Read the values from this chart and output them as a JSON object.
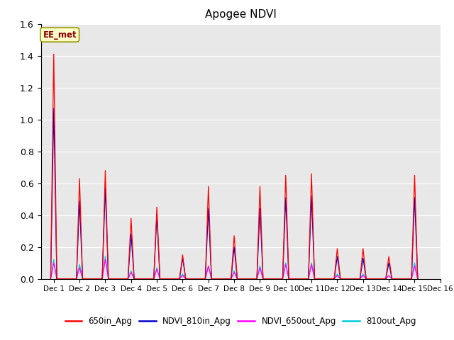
{
  "title": "Apogee NDVI",
  "annotation": "EE_met",
  "xlim": [
    0.5,
    15.5
  ],
  "ylim": [
    0.0,
    1.6
  ],
  "yticks": [
    0.0,
    0.2,
    0.4,
    0.6,
    0.8,
    1.0,
    1.2,
    1.4,
    1.6
  ],
  "xtick_positions": [
    1,
    2,
    3,
    4,
    5,
    6,
    7,
    8,
    9,
    10,
    11,
    12,
    13,
    14,
    15,
    16
  ],
  "xtick_labels": [
    "Dec 1",
    "Dec 2",
    "Dec 3",
    "Dec 4",
    "Dec 5",
    "Dec 6",
    "Dec 7",
    "Dec 8",
    "Dec 9",
    "Dec 10",
    "Dec 11",
    "Dec 12",
    "Dec 13",
    "Dec 14",
    "Dec 15",
    "Dec 16"
  ],
  "legend_entries": [
    "650in_Apg",
    "NDVI_810in_Apg",
    "NDVI_650out_Apg",
    "810out_Apg"
  ],
  "legend_colors": [
    "#ff0000",
    "#0000cc",
    "#ff00ff",
    "#00ccdd"
  ],
  "colors": {
    "650in_Apg": "#ff0000",
    "NDVI_810in_Apg": "#0000cc",
    "NDVI_650out_Apg": "#ff00ff",
    "810out_Apg": "#00ccdd"
  },
  "background_color": "#e8e8e8",
  "series": {
    "650in_Apg": {
      "x": [
        0.88,
        1.0,
        1.12,
        1.88,
        2.0,
        2.12,
        2.88,
        3.0,
        3.12,
        3.88,
        4.0,
        4.12,
        4.88,
        5.0,
        5.12,
        5.88,
        6.0,
        6.12,
        6.88,
        7.0,
        7.12,
        7.88,
        8.0,
        8.12,
        8.88,
        9.0,
        9.12,
        9.88,
        10.0,
        10.12,
        10.88,
        11.0,
        11.12,
        11.88,
        12.0,
        12.12,
        12.88,
        13.0,
        13.12,
        13.88,
        14.0,
        14.12,
        14.88,
        15.0,
        15.12
      ],
      "y": [
        0.0,
        1.41,
        0.0,
        0.0,
        0.63,
        0.0,
        0.0,
        0.68,
        0.0,
        0.0,
        0.38,
        0.0,
        0.0,
        0.45,
        0.0,
        0.0,
        0.15,
        0.0,
        0.0,
        0.58,
        0.0,
        0.0,
        0.27,
        0.0,
        0.0,
        0.58,
        0.0,
        0.0,
        0.65,
        0.0,
        0.0,
        0.66,
        0.0,
        0.0,
        0.19,
        0.0,
        0.0,
        0.19,
        0.0,
        0.0,
        0.14,
        0.0,
        0.0,
        0.65,
        0.0
      ]
    },
    "NDVI_810in_Apg": {
      "x": [
        0.88,
        1.0,
        1.12,
        1.88,
        2.0,
        2.12,
        2.88,
        3.0,
        3.12,
        3.88,
        4.0,
        4.12,
        4.88,
        5.0,
        5.12,
        5.88,
        6.0,
        6.12,
        6.88,
        7.0,
        7.12,
        7.88,
        8.0,
        8.12,
        8.88,
        9.0,
        9.12,
        9.88,
        10.0,
        10.12,
        10.88,
        11.0,
        11.12,
        11.88,
        12.0,
        12.12,
        12.88,
        13.0,
        13.12,
        13.88,
        14.0,
        14.12,
        14.88,
        15.0,
        15.12
      ],
      "y": [
        0.0,
        1.07,
        0.0,
        0.0,
        0.49,
        0.0,
        0.0,
        0.57,
        0.0,
        0.0,
        0.28,
        0.0,
        0.0,
        0.4,
        0.0,
        0.0,
        0.13,
        0.0,
        0.0,
        0.44,
        0.0,
        0.0,
        0.2,
        0.0,
        0.0,
        0.44,
        0.0,
        0.0,
        0.51,
        0.0,
        0.0,
        0.52,
        0.0,
        0.0,
        0.14,
        0.0,
        0.0,
        0.13,
        0.0,
        0.0,
        0.1,
        0.0,
        0.0,
        0.51,
        0.0
      ]
    },
    "NDVI_650out_Apg": {
      "x": [
        0.88,
        1.0,
        1.12,
        1.88,
        2.0,
        2.12,
        2.88,
        3.0,
        3.12,
        3.88,
        4.0,
        4.12,
        4.88,
        5.0,
        5.12,
        5.88,
        6.0,
        6.12,
        6.88,
        7.0,
        7.12,
        7.88,
        8.0,
        8.12,
        8.88,
        9.0,
        9.12,
        9.88,
        10.0,
        10.12,
        10.88,
        11.0,
        11.12,
        11.88,
        12.0,
        12.12,
        12.88,
        13.0,
        13.12,
        13.88,
        14.0,
        14.12,
        14.88,
        15.0,
        15.12
      ],
      "y": [
        0.0,
        0.1,
        0.0,
        0.0,
        0.07,
        0.0,
        0.0,
        0.12,
        0.0,
        0.0,
        0.04,
        0.0,
        0.0,
        0.06,
        0.0,
        0.0,
        0.02,
        0.0,
        0.0,
        0.08,
        0.0,
        0.0,
        0.04,
        0.0,
        0.0,
        0.07,
        0.0,
        0.0,
        0.09,
        0.0,
        0.0,
        0.09,
        0.0,
        0.0,
        0.02,
        0.0,
        0.0,
        0.02,
        0.0,
        0.0,
        0.02,
        0.0,
        0.0,
        0.08,
        0.0
      ]
    },
    "810out_Apg": {
      "x": [
        0.88,
        1.0,
        1.12,
        1.88,
        2.0,
        2.12,
        2.88,
        3.0,
        3.12,
        3.88,
        4.0,
        4.12,
        4.88,
        5.0,
        5.12,
        5.88,
        6.0,
        6.12,
        6.88,
        7.0,
        7.12,
        7.88,
        8.0,
        8.12,
        8.88,
        9.0,
        9.12,
        9.88,
        10.0,
        10.12,
        10.88,
        11.0,
        11.12,
        11.88,
        12.0,
        12.12,
        12.88,
        13.0,
        13.12,
        13.88,
        14.0,
        14.12,
        14.88,
        15.0,
        15.12
      ],
      "y": [
        0.0,
        0.12,
        0.0,
        0.0,
        0.09,
        0.0,
        0.0,
        0.14,
        0.0,
        0.0,
        0.05,
        0.0,
        0.0,
        0.07,
        0.0,
        0.0,
        0.03,
        0.0,
        0.0,
        0.08,
        0.0,
        0.0,
        0.05,
        0.0,
        0.0,
        0.08,
        0.0,
        0.0,
        0.1,
        0.0,
        0.0,
        0.1,
        0.0,
        0.0,
        0.03,
        0.0,
        0.0,
        0.03,
        0.0,
        0.0,
        0.02,
        0.0,
        0.0,
        0.1,
        0.0
      ]
    }
  }
}
